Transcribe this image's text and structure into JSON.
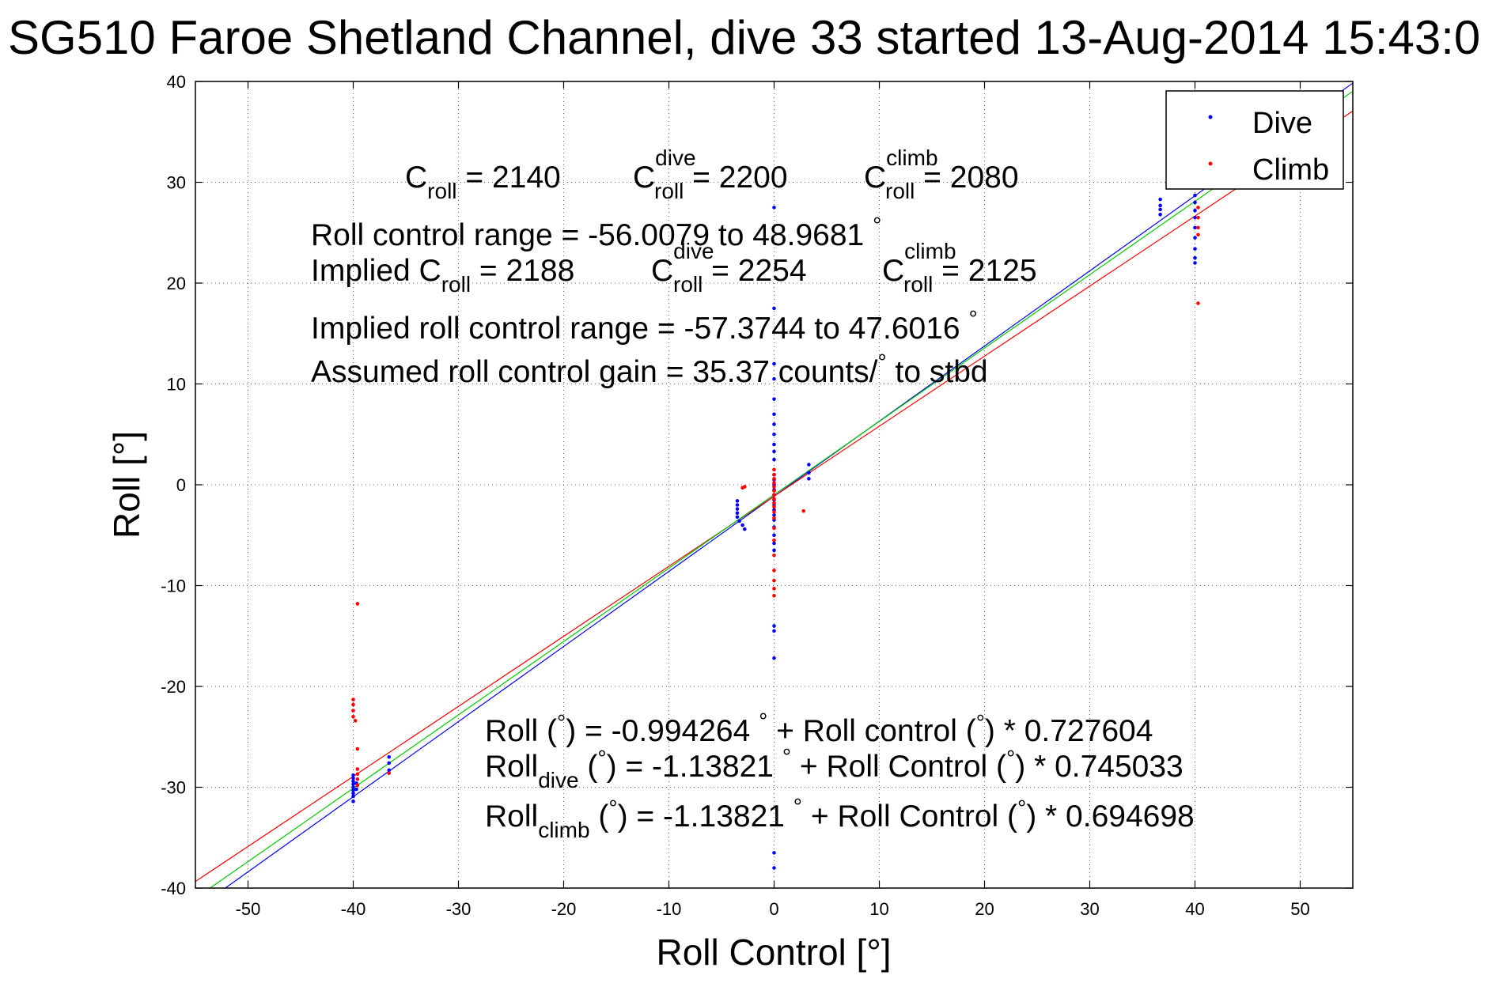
{
  "chart_data": {
    "type": "scatter",
    "title": "SG510 Faroe Shetland Channel, dive 33 started 13-Aug-2014 15:43:0",
    "xlabel": "Roll Control [°]",
    "ylabel": "Roll [°]",
    "xlim": [
      -55,
      55
    ],
    "ylim": [
      -40,
      40
    ],
    "xticks": [
      -50,
      -40,
      -30,
      -20,
      -10,
      0,
      10,
      20,
      30,
      40,
      50
    ],
    "yticks": [
      -40,
      -30,
      -20,
      -10,
      0,
      10,
      20,
      30,
      40
    ],
    "grid": true,
    "legend": "top-right",
    "colors": {
      "dive": "#0000ff",
      "climb": "#ff0000",
      "fit_all": "#00cc00"
    },
    "series": [
      {
        "name": "Dive",
        "color": "#0000ff",
        "points": [
          [
            -40,
            -28.8
          ],
          [
            -40,
            -29.1
          ],
          [
            -40,
            -29.4
          ],
          [
            -40,
            -29.7
          ],
          [
            -40,
            -30.0
          ],
          [
            -40,
            -30.3
          ],
          [
            -40,
            -30.6
          ],
          [
            -40,
            -30.9
          ],
          [
            -40,
            -31.4
          ],
          [
            -39.7,
            -29.6
          ],
          [
            -39.7,
            -30.2
          ],
          [
            -36.6,
            -27.0
          ],
          [
            -36.6,
            -27.6
          ],
          [
            -36.6,
            -28.3
          ],
          [
            -3.5,
            -1.6
          ],
          [
            -3.5,
            -2.0
          ],
          [
            -3.5,
            -2.4
          ],
          [
            -3.5,
            -2.8
          ],
          [
            -3.5,
            -3.2
          ],
          [
            -3.3,
            -3.6
          ],
          [
            -3.0,
            -4.0
          ],
          [
            -2.8,
            -4.4
          ],
          [
            0.0,
            27.5
          ],
          [
            0.0,
            17.5
          ],
          [
            0.0,
            12.0
          ],
          [
            0.0,
            10.5
          ],
          [
            0.0,
            8.5
          ],
          [
            0.0,
            7.0
          ],
          [
            0.0,
            6.0
          ],
          [
            0.0,
            5.0
          ],
          [
            0.0,
            4.0
          ],
          [
            0.0,
            3.3
          ],
          [
            0.0,
            2.5
          ],
          [
            0.0,
            1.0
          ],
          [
            0.0,
            0.5
          ],
          [
            0.0,
            0.0
          ],
          [
            0.0,
            -0.5
          ],
          [
            0.0,
            -1.0
          ],
          [
            0.0,
            -1.5
          ],
          [
            0.0,
            -2.0
          ],
          [
            0.0,
            -2.5
          ],
          [
            0.0,
            -3.0
          ],
          [
            0.0,
            -3.5
          ],
          [
            0.0,
            -4.2
          ],
          [
            0.0,
            -5.0
          ],
          [
            0.0,
            -5.8
          ],
          [
            0.0,
            -6.5
          ],
          [
            0.0,
            -14.0
          ],
          [
            0.0,
            -14.5
          ],
          [
            0.0,
            -17.2
          ],
          [
            0.0,
            -36.5
          ],
          [
            0.0,
            -38.0
          ],
          [
            3.3,
            2.0
          ],
          [
            3.3,
            1.2
          ],
          [
            3.3,
            0.6
          ],
          [
            36.7,
            26.8
          ],
          [
            36.7,
            27.3
          ],
          [
            36.7,
            27.7
          ],
          [
            36.7,
            28.3
          ],
          [
            40,
            22.0
          ],
          [
            40,
            22.5
          ],
          [
            40,
            23.4
          ],
          [
            40,
            24.5
          ],
          [
            40,
            25.5
          ],
          [
            40,
            26.5
          ],
          [
            40,
            27.2
          ],
          [
            40,
            28.0
          ],
          [
            40,
            28.7
          ],
          [
            40,
            29.5
          ]
        ]
      },
      {
        "name": "Climb",
        "color": "#ff0000",
        "points": [
          [
            -39.6,
            -11.8
          ],
          [
            -40,
            -21.3
          ],
          [
            -40,
            -21.8
          ],
          [
            -40,
            -22.4
          ],
          [
            -40,
            -23.0
          ],
          [
            -39.8,
            -23.4
          ],
          [
            -39.6,
            -26.2
          ],
          [
            -39.6,
            -28.2
          ],
          [
            -39.6,
            -28.7
          ],
          [
            -39.6,
            -29.2
          ],
          [
            -39.6,
            -29.8
          ],
          [
            -36.6,
            -28.6
          ],
          [
            -2.8,
            -0.2
          ],
          [
            -3.0,
            -0.3
          ],
          [
            0.0,
            1.5
          ],
          [
            0.0,
            1.0
          ],
          [
            0.0,
            0.6
          ],
          [
            0.0,
            0.2
          ],
          [
            0.0,
            -0.2
          ],
          [
            0.0,
            -0.6
          ],
          [
            0.0,
            -1.0
          ],
          [
            0.0,
            -1.4
          ],
          [
            0.0,
            -1.8
          ],
          [
            0.0,
            -2.2
          ],
          [
            0.0,
            -2.7
          ],
          [
            0.0,
            -3.3
          ],
          [
            0.0,
            -4.3
          ],
          [
            0.0,
            -5.5
          ],
          [
            0.0,
            -7.0
          ],
          [
            0.0,
            -8.5
          ],
          [
            0.0,
            -9.5
          ],
          [
            0.0,
            -10.3
          ],
          [
            0.0,
            -11.0
          ],
          [
            2.8,
            -2.6
          ],
          [
            40.3,
            24.8
          ],
          [
            40.3,
            25.5
          ],
          [
            40.3,
            26.5
          ],
          [
            40.3,
            27.5
          ],
          [
            40.3,
            18.0
          ]
        ]
      }
    ],
    "fit_lines": [
      {
        "name": "Dive",
        "color": "#0000ff",
        "intercept": -1.13821,
        "slope": 0.745033
      },
      {
        "name": "Climb",
        "color": "#ff0000",
        "intercept": -1.13821,
        "slope": 0.694698
      },
      {
        "name": "All",
        "color": "#00cc00",
        "intercept": -0.994264,
        "slope": 0.727604
      }
    ],
    "annotations": {
      "c_roll_line": {
        "c": "C",
        "sub_roll": "roll",
        "sup_dive": "dive",
        "sup_climb": "climb",
        "val1": " = 2140",
        "val2": " = 2200",
        "val3": " = 2080"
      },
      "range_line": {
        "text": "Roll control range = -56.0079 to 48.9681 ",
        "deg": "°"
      },
      "implied_c_line": {
        "prefix": "Implied C",
        "sub_roll": "roll",
        "sup_dive": "dive",
        "sup_climb": "climb",
        "c": "C",
        "val1": " = 2188",
        "val2": " = 2254",
        "val3": " = 2125"
      },
      "implied_range_line": {
        "text": "Implied roll control range = -57.3744 to 47.6016 ",
        "deg": "°"
      },
      "gain_line": {
        "text": "Assumed roll control gain = 35.37 counts/",
        "deg": "°",
        "suffix": " to stbd"
      },
      "fit_all": {
        "pre": "Roll (",
        "deg": "°",
        "post": ") = -0.994264 ",
        "post2": " + Roll control (",
        "post3": ") * 0.727604"
      },
      "fit_dive": {
        "pre": "Roll",
        "sub": "dive",
        "mid": " (",
        "deg": "°",
        "post": ") = -1.13821 ",
        "post2": " + Roll Control (",
        "post3": ") * 0.745033"
      },
      "fit_climb": {
        "pre": "Roll",
        "sub": "climb",
        "mid": " (",
        "deg": "°",
        "post": ") = -1.13821 ",
        "post2": " + Roll Control (",
        "post3": ") * 0.694698"
      }
    }
  }
}
